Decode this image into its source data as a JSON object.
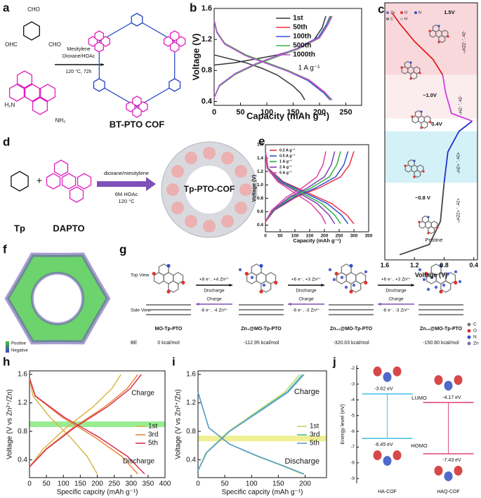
{
  "panels": {
    "a": {
      "label": "a",
      "aldehyde_groups": [
        "CHO",
        "OHC",
        "CHO"
      ],
      "amine_groups": [
        "H₂N",
        "NH₂"
      ],
      "conditions": [
        "Mesitylene",
        "Dioxane/HOAc",
        "120 °C, 72h"
      ],
      "product": "BT-PTO COF"
    },
    "d": {
      "label": "d",
      "reactants": [
        "Tp",
        "DAPTO"
      ],
      "plus": "+",
      "conditions": [
        "dioxane/mesitylene",
        "6M HOAc",
        "120 °C"
      ],
      "product": "Tp-PTO-COF"
    },
    "f": {
      "label": "f",
      "scale": [
        "Positive",
        "Negative"
      ]
    },
    "g": {
      "label": "g",
      "views": [
        "Top View",
        "Side View"
      ],
      "be_label": "BE",
      "structures": [
        {
          "name": "MO-Tp-PTO",
          "be": "0 kcal/mol"
        },
        {
          "name": "Zn₄@MO-Tp-PTO",
          "be": "-112.95 kcal/mol"
        },
        {
          "name": "Zn₁₀@MO-Tp-PTO",
          "be": "-320.03 kcal/mol"
        },
        {
          "name": "Zn₁₆@MO-Tp-PTO",
          "be": "-150.60 kcal/mol"
        }
      ],
      "steps": [
        {
          "forward": "+8 e⁻, +4 Zn²⁺",
          "discharge": "Discharge",
          "charge": "Charge",
          "reverse": "-8 e⁻, -4 Zn²⁺"
        },
        {
          "forward": "+6 e⁻, +3 Zn²⁺",
          "discharge": "Discharge",
          "charge": "Charge",
          "reverse": "-6 e⁻, -3 Zn²⁺"
        },
        {
          "forward": "+6 e⁻, +3 Zn²⁺",
          "discharge": "Discharge",
          "charge": "Charge",
          "reverse": "-6 e⁻, -3 Zn²⁺"
        }
      ],
      "legend": [
        "C",
        "O",
        "N",
        "Zn"
      ]
    }
  },
  "chart_data": [
    {
      "panel": "b",
      "type": "line",
      "xlabel": "Capacity (mAh g⁻¹)",
      "ylabel": "Voltage (V)",
      "xlim": [
        0,
        280
      ],
      "ylim": [
        0.35,
        1.6
      ],
      "xticks": [
        0,
        50,
        100,
        150,
        200,
        250
      ],
      "yticks": [
        0.4,
        0.8,
        1.2,
        1.6
      ],
      "legend": "upper center",
      "annotations": [
        "1 A g⁻¹"
      ],
      "series": [
        {
          "name": "1st",
          "color": "#333333",
          "x": [
            0,
            40,
            80,
            120,
            160,
            190,
            205,
            212,
            null,
            0,
            30,
            60,
            90,
            120,
            150,
            165,
            172
          ],
          "values": [
            0.87,
            0.9,
            0.95,
            1.0,
            1.08,
            1.2,
            1.35,
            1.5,
            null,
            1.0,
            0.95,
            0.9,
            0.83,
            0.74,
            0.6,
            0.5,
            0.42
          ]
        },
        {
          "name": "50th",
          "color": "#e8343c",
          "x": [
            0,
            10,
            40,
            80,
            120,
            160,
            200,
            215,
            222,
            null,
            0,
            5,
            20,
            60,
            100,
            140,
            180,
            210,
            222
          ],
          "values": [
            0.45,
            0.6,
            0.75,
            0.88,
            0.98,
            1.08,
            1.22,
            1.38,
            1.5,
            null,
            1.45,
            1.3,
            1.15,
            1.0,
            0.9,
            0.8,
            0.68,
            0.52,
            0.42
          ]
        },
        {
          "name": "100th",
          "color": "#3050d8",
          "x": [
            0,
            10,
            40,
            80,
            120,
            160,
            198,
            213,
            220,
            null,
            0,
            5,
            20,
            60,
            100,
            140,
            178,
            208,
            220
          ],
          "values": [
            0.45,
            0.61,
            0.76,
            0.89,
            0.99,
            1.09,
            1.23,
            1.39,
            1.5,
            null,
            1.44,
            1.29,
            1.14,
            0.99,
            0.89,
            0.79,
            0.67,
            0.51,
            0.42
          ]
        },
        {
          "name": "500th",
          "color": "#38b048",
          "x": [
            0,
            10,
            40,
            80,
            120,
            160,
            199,
            214,
            221,
            null,
            0,
            5,
            20,
            60,
            100,
            140,
            179,
            209,
            221
          ],
          "values": [
            0.45,
            0.6,
            0.75,
            0.88,
            0.98,
            1.08,
            1.22,
            1.38,
            1.5,
            null,
            1.45,
            1.3,
            1.15,
            1.0,
            0.9,
            0.8,
            0.68,
            0.52,
            0.42
          ]
        },
        {
          "name": "1000th",
          "color": "#c050d8",
          "x": [
            0,
            10,
            40,
            80,
            120,
            160,
            201,
            216,
            224,
            null,
            0,
            5,
            20,
            60,
            100,
            140,
            181,
            211,
            224
          ],
          "values": [
            0.45,
            0.61,
            0.76,
            0.89,
            0.99,
            1.09,
            1.23,
            1.39,
            1.5,
            null,
            1.44,
            1.29,
            1.14,
            0.99,
            0.89,
            0.79,
            0.67,
            0.51,
            0.42
          ]
        }
      ]
    },
    {
      "panel": "e",
      "type": "line",
      "xlabel": "Capacity (mAh g⁻¹)",
      "ylabel": "Voltage (V)",
      "xlim": [
        0,
        350
      ],
      "ylim": [
        0.3,
        1.6
      ],
      "xticks": [
        0,
        50,
        100,
        150,
        200,
        250,
        300,
        350
      ],
      "yticks": [
        0.4,
        0.6,
        0.8,
        {
          "value": 1,
          "label": "1.0"
        },
        1.2,
        1.4,
        1.6
      ],
      "legend": "upper left",
      "series": [
        {
          "name": "0.2 A g⁻¹",
          "color": "#e8344a",
          "x": [
            0,
            30,
            105,
            180,
            255,
            285,
            300,
            null,
            0,
            9,
            60,
            135,
            225,
            276,
            300
          ],
          "values": [
            0.45,
            0.62,
            0.82,
            0.95,
            1.12,
            1.3,
            1.5,
            null,
            1.5,
            1.25,
            1.05,
            0.9,
            0.72,
            0.55,
            0.42
          ]
        },
        {
          "name": "0.5 A g⁻¹",
          "color": "#3050d0",
          "x": [
            0,
            28,
            98,
            168,
            238,
            266,
            280,
            null,
            0,
            8,
            56,
            126,
            210,
            258,
            280
          ],
          "values": [
            0.45,
            0.62,
            0.82,
            0.95,
            1.12,
            1.3,
            1.5,
            null,
            1.5,
            1.25,
            1.05,
            0.9,
            0.72,
            0.55,
            0.42
          ]
        },
        {
          "name": "1 A g⁻¹",
          "color": "#30b040",
          "x": [
            0,
            26,
            89,
            153,
            217,
            242,
            255,
            null,
            0,
            8,
            51,
            115,
            191,
            235,
            255
          ],
          "values": [
            0.45,
            0.62,
            0.82,
            0.95,
            1.12,
            1.3,
            1.5,
            null,
            1.5,
            1.25,
            1.05,
            0.9,
            0.72,
            0.55,
            0.42
          ]
        },
        {
          "name": "2 A g⁻¹",
          "color": "#8040c0",
          "x": [
            0,
            24,
            82,
            141,
            200,
            223,
            235,
            null,
            0,
            7,
            47,
            106,
            176,
            216,
            235
          ],
          "values": [
            0.45,
            0.62,
            0.82,
            0.95,
            1.12,
            1.3,
            1.5,
            null,
            1.5,
            1.25,
            1.05,
            0.9,
            0.72,
            0.55,
            0.42
          ]
        },
        {
          "name": "5 A g⁻¹",
          "color": "#e040a0",
          "x": [
            0,
            21,
            72,
            123,
            174,
            195,
            205,
            null,
            0,
            6,
            41,
            92,
            154,
            189,
            205
          ],
          "values": [
            0.45,
            0.62,
            0.82,
            0.95,
            1.12,
            1.3,
            1.5,
            null,
            1.5,
            1.25,
            1.05,
            0.9,
            0.72,
            0.55,
            0.42
          ]
        }
      ]
    },
    {
      "panel": "h",
      "type": "line",
      "xlabel": "Specific capcity (mAh g⁻¹)",
      "ylabel": "Voltage (V vs Zn²⁺/Zn)",
      "xlim": [
        0,
        400
      ],
      "ylim": [
        0.15,
        1.65
      ],
      "xticks": [
        0,
        50,
        100,
        150,
        200,
        250,
        300,
        350,
        400
      ],
      "yticks": [
        0.4,
        0.8,
        1.2,
        1.6
      ],
      "band": {
        "value": 0.9,
        "color": "#86ea7e"
      },
      "legend": "center right",
      "annotations": [
        "Charge",
        "Discharge"
      ],
      "series": [
        {
          "name": "1st",
          "color": "#d8b84a",
          "x": [
            0,
            40,
            108,
            189,
            243,
            270,
            null,
            0,
            10,
            60,
            120,
            170,
            200
          ],
          "values": [
            0.3,
            0.55,
            0.85,
            1.15,
            1.4,
            1.6,
            null,
            1.55,
            1.3,
            1.0,
            0.72,
            0.45,
            0.2
          ]
        },
        {
          "name": "3rd",
          "color": "#e8883a",
          "x": [
            0,
            48,
            128,
            224,
            288,
            320,
            null,
            0,
            16,
            96,
            192,
            272,
            320
          ],
          "values": [
            0.3,
            0.55,
            0.85,
            1.15,
            1.4,
            1.6,
            null,
            1.55,
            1.3,
            1.0,
            0.72,
            0.45,
            0.2
          ]
        },
        {
          "name": "5th",
          "color": "#dc3050",
          "x": [
            0,
            50,
            132,
            231,
            297,
            330,
            null,
            0,
            17,
            102,
            204,
            289,
            340
          ],
          "values": [
            0.3,
            0.55,
            0.85,
            1.15,
            1.4,
            1.6,
            null,
            1.55,
            1.3,
            1.0,
            0.72,
            0.45,
            0.2
          ]
        }
      ]
    },
    {
      "panel": "i",
      "type": "line",
      "xlabel": "Specific capcity (mAh g⁻¹)",
      "ylabel": "Voltage (V vs Zn²⁺/Zn)",
      "xlim": [
        0,
        240
      ],
      "ylim": [
        0.15,
        1.65
      ],
      "xticks": [
        0,
        50,
        100,
        150,
        200
      ],
      "yticks": [
        0.4,
        0.8,
        1.2,
        1.6
      ],
      "band": {
        "value": 0.7,
        "color": "#ecec80"
      },
      "legend": "center right",
      "annotations": [
        "Charge",
        "Discharge"
      ],
      "series": [
        {
          "name": "1st",
          "color": "#b8dc6a",
          "x": [
            0,
            15,
            57,
            114,
            162,
            190,
            null,
            0,
            20,
            59,
            107,
            156,
            195
          ],
          "values": [
            0.25,
            0.5,
            0.8,
            1.1,
            1.35,
            1.6,
            null,
            1.35,
            0.85,
            0.62,
            0.46,
            0.32,
            0.2
          ]
        },
        {
          "name": "3rd",
          "color": "#4fbf9a",
          "x": [
            0,
            16,
            59,
            117,
            166,
            195,
            null,
            0,
            20,
            59,
            109,
            158,
            198
          ],
          "values": [
            0.25,
            0.5,
            0.8,
            1.1,
            1.35,
            1.6,
            null,
            1.35,
            0.85,
            0.62,
            0.46,
            0.32,
            0.2
          ]
        },
        {
          "name": "5th",
          "color": "#5b9bd5",
          "x": [
            0,
            16,
            59,
            119,
            168,
            198,
            null,
            0,
            20,
            59,
            109,
            158,
            198
          ],
          "values": [
            0.25,
            0.5,
            0.8,
            1.1,
            1.35,
            1.6,
            null,
            1.35,
            0.85,
            0.62,
            0.46,
            0.32,
            0.2
          ]
        }
      ]
    },
    {
      "panel": "c",
      "type": "line",
      "xlabel": "Voltage (V)",
      "xlim": [
        1.6,
        0.35
      ],
      "ylim": [
        0,
        1
      ],
      "xticks": [
        1.6,
        1.2,
        0.8,
        0.4
      ],
      "annotations": [
        "1.5V",
        "~1.0V",
        "0.4V",
        "~0.8 V",
        "Pristine",
        "-2e⁻, -2Zn²⁺",
        "-2e⁻, -2H⁺",
        "+2e⁻, +2H⁺",
        "+2e⁻, +2Zn²⁺"
      ],
      "atom_legend": [
        "Zn",
        "O",
        "N",
        "C",
        "H"
      ],
      "series": [
        {
          "color": "#444444",
          "x": [
            1.4,
            1.0,
            0.85,
            0.8
          ],
          "values": [
            0.02,
            0.06,
            0.15,
            0.3
          ]
        },
        {
          "color": "#2030d0",
          "x": [
            0.8,
            0.75,
            0.6,
            0.42
          ],
          "values": [
            0.3,
            0.42,
            0.5,
            0.54
          ]
        },
        {
          "color": "#d040e0",
          "x": [
            0.42,
            0.7,
            0.78,
            0.82
          ],
          "values": [
            0.54,
            0.57,
            0.65,
            0.72
          ]
        },
        {
          "color": "#e02020",
          "x": [
            0.82,
            0.95,
            1.2,
            1.4,
            1.5
          ],
          "values": [
            0.72,
            0.78,
            0.85,
            0.92,
            0.96
          ]
        }
      ]
    },
    {
      "panel": "j",
      "type": "energy",
      "ylabel": "Energy level (eV)",
      "ylim": [
        -9.3,
        -1.8
      ],
      "yticks": [
        -2,
        -3,
        -4,
        -5,
        -6,
        -7,
        -8,
        -9
      ],
      "categories": [
        "HA-COF",
        "HAQ-COF"
      ],
      "colors": [
        "#4fc3e8",
        "#e0507a"
      ],
      "series": [
        {
          "name": "LUMO",
          "values": [
            -3.62,
            -4.17
          ],
          "value_labels": [
            "-3.62 eV",
            "-4.17 eV"
          ]
        },
        {
          "name": "HOMO",
          "values": [
            -6.45,
            -7.43
          ],
          "value_labels": [
            "-6.45 eV",
            "-7.43 eV"
          ]
        }
      ]
    }
  ]
}
